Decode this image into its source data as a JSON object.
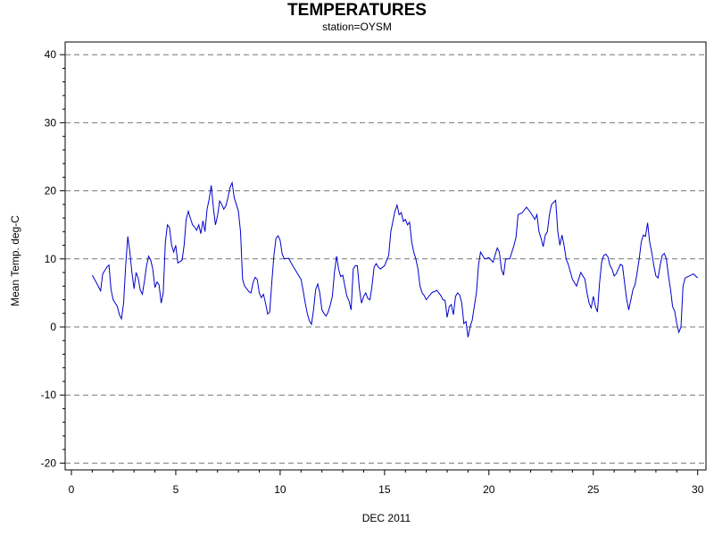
{
  "chart_data": {
    "type": "line",
    "title": "TEMPERATURES",
    "subtitle": "station=OYSM",
    "xlabel": "DEC 2011",
    "ylabel": "Mean Temp. deg-C",
    "xlim": [
      0,
      30.3
    ],
    "ylim": [
      -21,
      41
    ],
    "xticks": [
      0,
      5,
      10,
      15,
      20,
      25,
      30
    ],
    "yticks": [
      40,
      30,
      20,
      10,
      0,
      -10,
      -20
    ],
    "grid": "horizontal dashed",
    "line_color": "#0000cc",
    "series": [
      {
        "points": [
          [
            1.0,
            7.6
          ],
          [
            1.2,
            6.5
          ],
          [
            1.4,
            5.3
          ],
          [
            1.5,
            7.8
          ],
          [
            1.7,
            8.8
          ],
          [
            1.8,
            9.1
          ],
          [
            1.9,
            5.5
          ],
          [
            2.0,
            4.0
          ],
          [
            2.2,
            3.0
          ],
          [
            2.3,
            1.8
          ],
          [
            2.4,
            1.2
          ],
          [
            2.5,
            3.5
          ],
          [
            2.6,
            9.0
          ],
          [
            2.7,
            13.3
          ],
          [
            2.8,
            11.0
          ],
          [
            2.9,
            8.0
          ],
          [
            3.0,
            5.6
          ],
          [
            3.1,
            8.0
          ],
          [
            3.2,
            7.2
          ],
          [
            3.3,
            5.4
          ],
          [
            3.4,
            4.8
          ],
          [
            3.5,
            6.8
          ],
          [
            3.6,
            9.0
          ],
          [
            3.7,
            10.4
          ],
          [
            3.8,
            9.8
          ],
          [
            3.9,
            8.5
          ],
          [
            4.0,
            5.8
          ],
          [
            4.1,
            6.6
          ],
          [
            4.2,
            6.2
          ],
          [
            4.3,
            3.5
          ],
          [
            4.4,
            5.0
          ],
          [
            4.5,
            12.5
          ],
          [
            4.6,
            15.0
          ],
          [
            4.7,
            14.6
          ],
          [
            4.8,
            12.0
          ],
          [
            4.9,
            11.0
          ],
          [
            5.0,
            12.0
          ],
          [
            5.1,
            9.4
          ],
          [
            5.2,
            9.6
          ],
          [
            5.3,
            9.8
          ],
          [
            5.4,
            12.0
          ],
          [
            5.5,
            15.8
          ],
          [
            5.6,
            17.0
          ],
          [
            5.7,
            16.0
          ],
          [
            5.8,
            15.0
          ],
          [
            5.9,
            14.7
          ],
          [
            6.0,
            14.2
          ],
          [
            6.1,
            15.0
          ],
          [
            6.2,
            13.7
          ],
          [
            6.3,
            15.6
          ],
          [
            6.4,
            14.0
          ],
          [
            6.5,
            17.3
          ],
          [
            6.6,
            18.8
          ],
          [
            6.7,
            20.8
          ],
          [
            6.8,
            17.5
          ],
          [
            6.9,
            15.0
          ],
          [
            7.0,
            16.3
          ],
          [
            7.1,
            18.5
          ],
          [
            7.2,
            18.0
          ],
          [
            7.3,
            17.3
          ],
          [
            7.4,
            17.8
          ],
          [
            7.5,
            19.0
          ],
          [
            7.6,
            20.5
          ],
          [
            7.7,
            21.2
          ],
          [
            7.8,
            19.0
          ],
          [
            7.9,
            18.0
          ],
          [
            8.0,
            17.0
          ],
          [
            8.1,
            14.0
          ],
          [
            8.2,
            7.0
          ],
          [
            8.3,
            6.0
          ],
          [
            8.4,
            5.6
          ],
          [
            8.5,
            5.2
          ],
          [
            8.6,
            5.0
          ],
          [
            8.7,
            6.5
          ],
          [
            8.8,
            7.3
          ],
          [
            8.9,
            7.0
          ],
          [
            9.0,
            5.0
          ],
          [
            9.1,
            4.3
          ],
          [
            9.2,
            4.8
          ],
          [
            9.3,
            3.5
          ],
          [
            9.4,
            1.9
          ],
          [
            9.5,
            2.2
          ],
          [
            9.6,
            6.5
          ],
          [
            9.7,
            10.5
          ],
          [
            9.8,
            13.0
          ],
          [
            9.9,
            13.4
          ],
          [
            10.0,
            12.7
          ],
          [
            10.1,
            10.7
          ],
          [
            10.2,
            10.0
          ],
          [
            10.4,
            10.1
          ],
          [
            10.6,
            9.0
          ],
          [
            10.8,
            8.0
          ],
          [
            11.0,
            7.0
          ],
          [
            11.1,
            5.4
          ],
          [
            11.2,
            3.5
          ],
          [
            11.3,
            2.0
          ],
          [
            11.4,
            0.9
          ],
          [
            11.5,
            0.4
          ],
          [
            11.6,
            2.5
          ],
          [
            11.7,
            5.5
          ],
          [
            11.8,
            6.3
          ],
          [
            11.9,
            5.0
          ],
          [
            12.0,
            2.5
          ],
          [
            12.1,
            2.0
          ],
          [
            12.2,
            1.6
          ],
          [
            12.3,
            2.2
          ],
          [
            12.4,
            3.2
          ],
          [
            12.5,
            4.5
          ],
          [
            12.6,
            8.0
          ],
          [
            12.7,
            10.4
          ],
          [
            12.8,
            8.5
          ],
          [
            12.9,
            7.4
          ],
          [
            13.0,
            7.6
          ],
          [
            13.1,
            6.0
          ],
          [
            13.2,
            4.5
          ],
          [
            13.3,
            3.8
          ],
          [
            13.4,
            2.5
          ],
          [
            13.5,
            8.5
          ],
          [
            13.6,
            9.0
          ],
          [
            13.7,
            9.0
          ],
          [
            13.8,
            5.5
          ],
          [
            13.9,
            3.5
          ],
          [
            14.0,
            4.5
          ],
          [
            14.1,
            5.0
          ],
          [
            14.2,
            4.2
          ],
          [
            14.3,
            4.0
          ],
          [
            14.4,
            6.0
          ],
          [
            14.5,
            8.8
          ],
          [
            14.6,
            9.3
          ],
          [
            14.7,
            8.8
          ],
          [
            14.8,
            8.5
          ],
          [
            15.0,
            9.0
          ],
          [
            15.2,
            10.5
          ],
          [
            15.3,
            14.0
          ],
          [
            15.5,
            17.0
          ],
          [
            15.6,
            17.9
          ],
          [
            15.7,
            16.5
          ],
          [
            15.8,
            16.8
          ],
          [
            15.9,
            15.5
          ],
          [
            16.0,
            15.8
          ],
          [
            16.1,
            15.0
          ],
          [
            16.2,
            15.4
          ],
          [
            16.3,
            12.5
          ],
          [
            16.4,
            11.0
          ],
          [
            16.5,
            10.0
          ],
          [
            16.6,
            8.5
          ],
          [
            16.7,
            6.0
          ],
          [
            16.8,
            5.0
          ],
          [
            16.9,
            4.6
          ],
          [
            17.0,
            4.0
          ],
          [
            17.1,
            4.4
          ],
          [
            17.2,
            4.8
          ],
          [
            17.3,
            5.1
          ],
          [
            17.4,
            5.2
          ],
          [
            17.5,
            5.4
          ],
          [
            17.6,
            5.0
          ],
          [
            17.7,
            4.6
          ],
          [
            17.8,
            4.0
          ],
          [
            17.9,
            3.9
          ],
          [
            18.0,
            1.4
          ],
          [
            18.1,
            3.0
          ],
          [
            18.2,
            3.3
          ],
          [
            18.3,
            1.8
          ],
          [
            18.4,
            4.5
          ],
          [
            18.5,
            5.0
          ],
          [
            18.6,
            4.7
          ],
          [
            18.7,
            3.5
          ],
          [
            18.8,
            0.5
          ],
          [
            18.9,
            0.8
          ],
          [
            19.0,
            -1.5
          ],
          [
            19.1,
            0.0
          ],
          [
            19.2,
            1.0
          ],
          [
            19.3,
            3.0
          ],
          [
            19.4,
            5.0
          ],
          [
            19.5,
            9.0
          ],
          [
            19.6,
            11.0
          ],
          [
            19.7,
            10.5
          ],
          [
            19.8,
            10.0
          ],
          [
            20.0,
            10.2
          ],
          [
            20.2,
            9.5
          ],
          [
            20.3,
            10.6
          ],
          [
            20.4,
            11.6
          ],
          [
            20.5,
            11.0
          ],
          [
            20.6,
            8.5
          ],
          [
            20.7,
            7.6
          ],
          [
            20.8,
            10.0
          ],
          [
            21.0,
            10.0
          ],
          [
            21.2,
            12.0
          ],
          [
            21.3,
            13.2
          ],
          [
            21.4,
            16.5
          ],
          [
            21.6,
            16.8
          ],
          [
            21.8,
            17.6
          ],
          [
            22.0,
            16.8
          ],
          [
            22.2,
            15.8
          ],
          [
            22.3,
            16.5
          ],
          [
            22.4,
            14.0
          ],
          [
            22.5,
            13.0
          ],
          [
            22.6,
            11.8
          ],
          [
            22.7,
            13.5
          ],
          [
            22.8,
            14.0
          ],
          [
            22.9,
            16.5
          ],
          [
            23.0,
            18.0
          ],
          [
            23.2,
            18.6
          ],
          [
            23.3,
            14.0
          ],
          [
            23.4,
            12.0
          ],
          [
            23.5,
            13.5
          ],
          [
            23.6,
            12.0
          ],
          [
            23.7,
            10.0
          ],
          [
            23.8,
            9.2
          ],
          [
            24.0,
            7.0
          ],
          [
            24.2,
            6.0
          ],
          [
            24.4,
            8.0
          ],
          [
            24.5,
            7.5
          ],
          [
            24.6,
            7.0
          ],
          [
            24.7,
            5.0
          ],
          [
            24.8,
            3.5
          ],
          [
            24.9,
            2.8
          ],
          [
            25.0,
            4.5
          ],
          [
            25.1,
            3.0
          ],
          [
            25.2,
            2.2
          ],
          [
            25.3,
            6.5
          ],
          [
            25.4,
            9.5
          ],
          [
            25.5,
            10.5
          ],
          [
            25.6,
            10.7
          ],
          [
            25.7,
            10.3
          ],
          [
            25.8,
            9.0
          ],
          [
            25.9,
            8.5
          ],
          [
            26.0,
            7.5
          ],
          [
            26.1,
            7.8
          ],
          [
            26.2,
            8.5
          ],
          [
            26.3,
            9.2
          ],
          [
            26.4,
            9.0
          ],
          [
            26.5,
            6.5
          ],
          [
            26.6,
            4.0
          ],
          [
            26.7,
            2.5
          ],
          [
            26.8,
            4.0
          ],
          [
            26.9,
            5.5
          ],
          [
            27.0,
            6.2
          ],
          [
            27.1,
            8.0
          ],
          [
            27.2,
            10.0
          ],
          [
            27.3,
            12.5
          ],
          [
            27.4,
            13.5
          ],
          [
            27.5,
            13.3
          ],
          [
            27.6,
            15.3
          ],
          [
            27.7,
            12.5
          ],
          [
            27.8,
            11.0
          ],
          [
            27.9,
            9.0
          ],
          [
            28.0,
            7.5
          ],
          [
            28.1,
            7.2
          ],
          [
            28.2,
            9.0
          ],
          [
            28.3,
            10.5
          ],
          [
            28.4,
            10.8
          ],
          [
            28.5,
            10.0
          ],
          [
            28.6,
            7.5
          ],
          [
            28.7,
            5.5
          ],
          [
            28.8,
            3.0
          ],
          [
            28.9,
            2.3
          ],
          [
            29.0,
            0.5
          ],
          [
            29.1,
            -0.8
          ],
          [
            29.2,
            0.0
          ],
          [
            29.3,
            6.0
          ],
          [
            29.4,
            7.2
          ],
          [
            29.6,
            7.5
          ],
          [
            29.8,
            7.8
          ],
          [
            30.0,
            7.2
          ]
        ]
      }
    ]
  }
}
